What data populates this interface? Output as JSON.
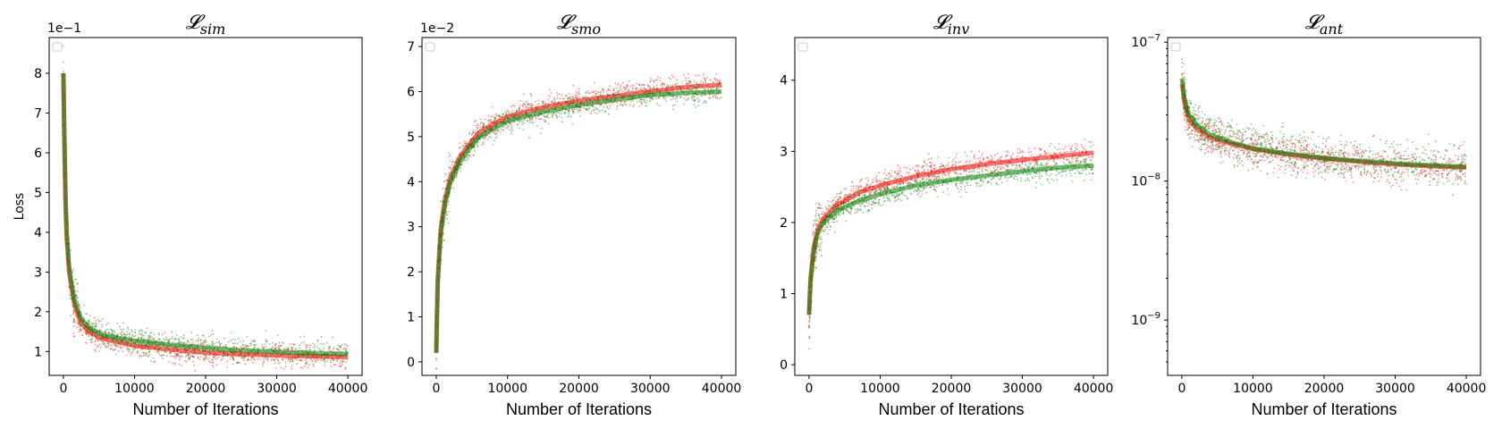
{
  "chart_data": [
    {
      "type": "scatter",
      "title_main": "𝓛",
      "title_sub": "sim",
      "xlabel": "Number of Iterations",
      "ylabel": "Loss",
      "offset_text": "1e−1",
      "xlim": [
        -2000,
        42000
      ],
      "ylim": [
        0.4,
        8.9
      ],
      "xticks": [
        0,
        10000,
        20000,
        30000,
        40000
      ],
      "yticks": [
        1,
        2,
        3,
        4,
        5,
        6,
        7,
        8
      ],
      "yscale": "linear",
      "legend": "top-left (empty)",
      "series": [
        {
          "color": "#ff0000",
          "points": [
            [
              0,
              8.0
            ],
            [
              150,
              6.0
            ],
            [
              400,
              4.0
            ],
            [
              800,
              3.0
            ],
            [
              1500,
              2.2
            ],
            [
              2500,
              1.7
            ],
            [
              4000,
              1.45
            ],
            [
              6000,
              1.3
            ],
            [
              10000,
              1.15
            ],
            [
              15000,
              1.05
            ],
            [
              20000,
              0.97
            ],
            [
              25000,
              0.93
            ],
            [
              30000,
              0.9
            ],
            [
              35000,
              0.88
            ],
            [
              40000,
              0.86
            ]
          ]
        },
        {
          "color": "#008000",
          "points": [
            [
              0,
              8.0
            ],
            [
              150,
              6.2
            ],
            [
              400,
              4.2
            ],
            [
              800,
              3.1
            ],
            [
              1500,
              2.3
            ],
            [
              2500,
              1.8
            ],
            [
              4000,
              1.55
            ],
            [
              6000,
              1.4
            ],
            [
              10000,
              1.27
            ],
            [
              15000,
              1.17
            ],
            [
              20000,
              1.09
            ],
            [
              25000,
              1.03
            ],
            [
              30000,
              0.99
            ],
            [
              35000,
              0.96
            ],
            [
              40000,
              0.94
            ]
          ]
        }
      ]
    },
    {
      "type": "scatter",
      "title_main": "𝓛",
      "title_sub": "smo",
      "xlabel": "Number of Iterations",
      "ylabel": "",
      "offset_text": "1e−2",
      "xlim": [
        -2000,
        42000
      ],
      "ylim": [
        -0.3,
        7.2
      ],
      "xticks": [
        0,
        10000,
        20000,
        30000,
        40000
      ],
      "yticks": [
        0,
        1,
        2,
        3,
        4,
        5,
        6,
        7
      ],
      "yscale": "linear",
      "legend": "top-left (empty)",
      "series": [
        {
          "color": "#ff0000",
          "points": [
            [
              0,
              0.2
            ],
            [
              200,
              1.8
            ],
            [
              600,
              2.9
            ],
            [
              1200,
              3.6
            ],
            [
              2000,
              4.1
            ],
            [
              3500,
              4.6
            ],
            [
              6000,
              5.1
            ],
            [
              10000,
              5.45
            ],
            [
              15000,
              5.65
            ],
            [
              20000,
              5.8
            ],
            [
              25000,
              5.9
            ],
            [
              30000,
              6.0
            ],
            [
              35000,
              6.1
            ],
            [
              40000,
              6.15
            ]
          ]
        },
        {
          "color": "#008000",
          "points": [
            [
              0,
              0.2
            ],
            [
              200,
              1.7
            ],
            [
              600,
              2.8
            ],
            [
              1200,
              3.5
            ],
            [
              2000,
              4.0
            ],
            [
              3500,
              4.5
            ],
            [
              6000,
              5.0
            ],
            [
              10000,
              5.35
            ],
            [
              15000,
              5.55
            ],
            [
              20000,
              5.7
            ],
            [
              25000,
              5.82
            ],
            [
              30000,
              5.92
            ],
            [
              35000,
              5.97
            ],
            [
              40000,
              6.0
            ]
          ]
        }
      ]
    },
    {
      "type": "scatter",
      "title_main": "𝓛",
      "title_sub": "inv",
      "xlabel": "Number of Iterations",
      "ylabel": "",
      "offset_text": "",
      "xlim": [
        -2000,
        42000
      ],
      "ylim": [
        -0.15,
        4.6
      ],
      "xticks": [
        0,
        10000,
        20000,
        30000,
        40000
      ],
      "yticks": [
        0,
        1,
        2,
        3,
        4
      ],
      "yscale": "linear",
      "legend": "top-left (empty)",
      "series": [
        {
          "color": "#ff0000",
          "points": [
            [
              0,
              0.7
            ],
            [
              200,
              1.2
            ],
            [
              600,
              1.6
            ],
            [
              1200,
              1.9
            ],
            [
              2000,
              2.05
            ],
            [
              4000,
              2.25
            ],
            [
              7000,
              2.42
            ],
            [
              10000,
              2.52
            ],
            [
              15000,
              2.65
            ],
            [
              20000,
              2.75
            ],
            [
              25000,
              2.82
            ],
            [
              30000,
              2.88
            ],
            [
              35000,
              2.93
            ],
            [
              40000,
              2.98
            ]
          ]
        },
        {
          "color": "#008000",
          "points": [
            [
              0,
              0.7
            ],
            [
              200,
              1.15
            ],
            [
              600,
              1.55
            ],
            [
              1200,
              1.85
            ],
            [
              2000,
              2.0
            ],
            [
              4000,
              2.17
            ],
            [
              7000,
              2.3
            ],
            [
              10000,
              2.4
            ],
            [
              15000,
              2.52
            ],
            [
              20000,
              2.6
            ],
            [
              25000,
              2.66
            ],
            [
              30000,
              2.72
            ],
            [
              35000,
              2.77
            ],
            [
              40000,
              2.8
            ]
          ]
        }
      ]
    },
    {
      "type": "scatter",
      "title_main": "𝓛",
      "title_sub": "ant",
      "xlabel": "Number of Iterations",
      "ylabel": "",
      "offset_text": "",
      "xlim": [
        -2000,
        42000
      ],
      "ylim": [
        4e-10,
        1.08e-07
      ],
      "xticks": [
        0,
        10000,
        20000,
        30000,
        40000
      ],
      "yticks": [
        1e-09,
        1e-08,
        1e-07
      ],
      "ytick_labels": [
        "10",
        "10",
        "10"
      ],
      "ytick_exponents": [
        "−9",
        "−8",
        "−7"
      ],
      "yscale": "log",
      "legend": "top-left (empty)",
      "series": [
        {
          "color": "#ff0000",
          "points": [
            [
              0,
              5e-08
            ],
            [
              400,
              3.5e-08
            ],
            [
              1000,
              2.8e-08
            ],
            [
              2000,
              2.4e-08
            ],
            [
              4000,
              2.05e-08
            ],
            [
              7000,
              1.85e-08
            ],
            [
              10000,
              1.7e-08
            ],
            [
              15000,
              1.55e-08
            ],
            [
              20000,
              1.45e-08
            ],
            [
              25000,
              1.38e-08
            ],
            [
              30000,
              1.32e-08
            ],
            [
              35000,
              1.28e-08
            ],
            [
              40000,
              1.25e-08
            ]
          ]
        },
        {
          "color": "#008000",
          "points": [
            [
              0,
              5.5e-08
            ],
            [
              400,
              3.8e-08
            ],
            [
              1000,
              3e-08
            ],
            [
              2000,
              2.55e-08
            ],
            [
              4000,
              2.15e-08
            ],
            [
              7000,
              1.9e-08
            ],
            [
              10000,
              1.72e-08
            ],
            [
              15000,
              1.57e-08
            ],
            [
              20000,
              1.47e-08
            ],
            [
              25000,
              1.4e-08
            ],
            [
              30000,
              1.34e-08
            ],
            [
              35000,
              1.3e-08
            ],
            [
              40000,
              1.27e-08
            ]
          ]
        }
      ]
    }
  ]
}
